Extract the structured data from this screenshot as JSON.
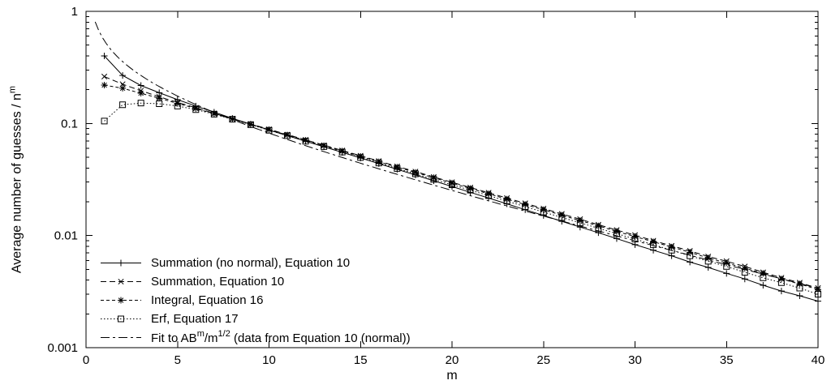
{
  "figure": {
    "background": "#ffffff",
    "axis_color": "#000000",
    "line_color": "#000000"
  },
  "chart_data": {
    "type": "line",
    "title": "",
    "xlabel": "m",
    "ylabel_parts": [
      {
        "t": "Average number of guesses / n"
      },
      {
        "t": "m",
        "sup": true
      }
    ],
    "grid": false,
    "legend_position": "bottom-left",
    "x_axis": {
      "min": 0,
      "max": 40,
      "ticks": [
        0,
        5,
        10,
        15,
        20,
        25,
        30,
        35,
        40
      ],
      "tick_labels": [
        "0",
        "5",
        "10",
        "15",
        "20",
        "25",
        "30",
        "35",
        "40"
      ]
    },
    "y_axis": {
      "scale": "log",
      "min": 0.001,
      "max": 1,
      "ticks": [
        {
          "v": 1,
          "label": "1"
        },
        {
          "v": 0.1,
          "label": "0.1"
        },
        {
          "v": 0.01,
          "label": "0.01"
        },
        {
          "v": 0.001,
          "label": "0.001"
        }
      ]
    },
    "x_values": [
      1,
      2,
      3,
      4,
      5,
      6,
      7,
      8,
      9,
      10,
      11,
      12,
      13,
      14,
      15,
      16,
      17,
      18,
      19,
      20,
      21,
      22,
      23,
      24,
      25,
      26,
      27,
      28,
      29,
      30,
      31,
      32,
      33,
      34,
      35,
      36,
      37,
      38,
      39,
      40
    ],
    "series": [
      {
        "id": "summation-no-normal",
        "label_parts": [
          {
            "t": "Summation (no normal), Equation 10"
          }
        ],
        "marker": "plus",
        "line": "solid",
        "values": [
          0.4,
          0.268,
          0.218,
          0.188,
          0.163,
          0.143,
          0.126,
          0.111,
          0.0985,
          0.0875,
          0.0778,
          0.0694,
          0.0619,
          0.0552,
          0.0492,
          0.0438,
          0.039,
          0.0347,
          0.0308,
          0.0274,
          0.0243,
          0.0216,
          0.0192,
          0.017,
          0.0151,
          0.0134,
          0.0119,
          0.0106,
          0.0094,
          0.0083,
          0.0074,
          0.0066,
          0.0058,
          0.0052,
          0.0046,
          0.0041,
          0.0036,
          0.0032,
          0.0029,
          0.0026
        ]
      },
      {
        "id": "summation",
        "label_parts": [
          {
            "t": "Summation, Equation 10"
          }
        ],
        "marker": "cross",
        "line": "dashed",
        "values": [
          0.262,
          0.224,
          0.196,
          0.173,
          0.154,
          0.138,
          0.123,
          0.11,
          0.0988,
          0.0887,
          0.0796,
          0.0714,
          0.064,
          0.0574,
          0.0515,
          0.0462,
          0.0414,
          0.0372,
          0.0333,
          0.0299,
          0.0268,
          0.0241,
          0.0216,
          0.0194,
          0.0174,
          0.0156,
          0.014,
          0.0125,
          0.0112,
          0.0101,
          0.009,
          0.0081,
          0.0073,
          0.0065,
          0.0059,
          0.0053,
          0.0047,
          0.0042,
          0.0038,
          0.0034
        ]
      },
      {
        "id": "integral",
        "label_parts": [
          {
            "t": "Integral, Equation 16"
          }
        ],
        "marker": "star",
        "line": "shortdash",
        "values": [
          0.22,
          0.206,
          0.186,
          0.168,
          0.151,
          0.136,
          0.122,
          0.1095,
          0.0982,
          0.088,
          0.0789,
          0.0707,
          0.0633,
          0.0567,
          0.0508,
          0.0455,
          0.0408,
          0.0366,
          0.0328,
          0.0294,
          0.0263,
          0.0236,
          0.0211,
          0.0189,
          0.017,
          0.0152,
          0.0136,
          0.0122,
          0.0109,
          0.0098,
          0.0088,
          0.0079,
          0.0071,
          0.0063,
          0.0057,
          0.0051,
          0.0046,
          0.0041,
          0.0037,
          0.0033
        ]
      },
      {
        "id": "erf",
        "label_parts": [
          {
            "t": "Erf, Equation 17"
          }
        ],
        "marker": "square",
        "line": "dotted",
        "values": [
          0.105,
          0.147,
          0.152,
          0.15,
          0.143,
          0.133,
          0.121,
          0.109,
          0.0975,
          0.087,
          0.0778,
          0.0695,
          0.0622,
          0.0556,
          0.0497,
          0.0444,
          0.0397,
          0.0355,
          0.0317,
          0.0284,
          0.0254,
          0.0227,
          0.0203,
          0.0181,
          0.0162,
          0.0145,
          0.013,
          0.0116,
          0.0104,
          0.0093,
          0.0083,
          0.0074,
          0.0066,
          0.0059,
          0.0053,
          0.0047,
          0.0042,
          0.0038,
          0.0034,
          0.003
        ]
      },
      {
        "id": "fit",
        "label_parts": [
          {
            "t": "Fit to AB"
          },
          {
            "t": "m",
            "sup": true
          },
          {
            "t": "/m"
          },
          {
            "t": "1/2",
            "sup": true
          },
          {
            "t": " (data from Equation 10 (normal))"
          }
        ],
        "marker": "none",
        "line": "dashdot",
        "fit_curve": {
          "A": 0.595,
          "B": 0.9203,
          "formula": "A*B^m/sqrt(m)",
          "m_start": 0.3,
          "m_end": 40,
          "step": 0.2
        }
      }
    ]
  }
}
